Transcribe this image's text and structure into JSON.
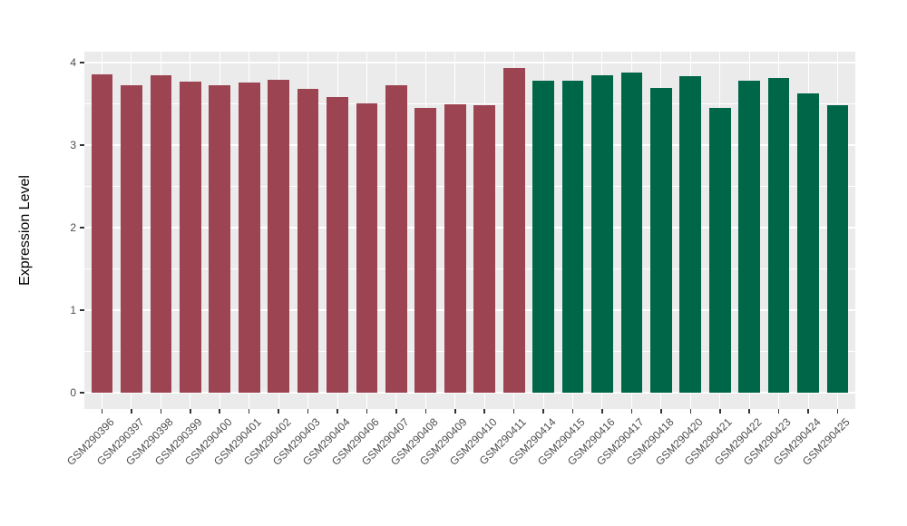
{
  "chart_data": {
    "type": "bar",
    "title": "",
    "xlabel": "",
    "ylabel": "Expression Level",
    "ylim": [
      0,
      4
    ],
    "yticks": [
      0,
      1,
      2,
      3,
      4
    ],
    "grid": true,
    "legend": false,
    "panel_background": "#EBEBEB",
    "gridline_color": "#FFFFFF",
    "tick_color": "#333333",
    "tick_label_color": "#4D4D4D",
    "categories": [
      "GSM290396",
      "GSM290397",
      "GSM290398",
      "GSM290399",
      "GSM290400",
      "GSM290401",
      "GSM290402",
      "GSM290403",
      "GSM290404",
      "GSM290406",
      "GSM290407",
      "GSM290408",
      "GSM290409",
      "GSM290410",
      "GSM290411",
      "GSM290414",
      "GSM290415",
      "GSM290416",
      "GSM290417",
      "GSM290418",
      "GSM290420",
      "GSM290421",
      "GSM290422",
      "GSM290423",
      "GSM290424",
      "GSM290425"
    ],
    "values": [
      3.86,
      3.72,
      3.85,
      3.77,
      3.73,
      3.76,
      3.79,
      3.68,
      3.58,
      3.51,
      3.72,
      3.45,
      3.5,
      3.48,
      3.93,
      3.78,
      3.78,
      3.85,
      3.88,
      3.69,
      3.83,
      3.45,
      3.78,
      3.81,
      3.63,
      3.48
    ],
    "groups": [
      "group1",
      "group1",
      "group1",
      "group1",
      "group1",
      "group1",
      "group1",
      "group1",
      "group1",
      "group1",
      "group1",
      "group1",
      "group1",
      "group1",
      "group1",
      "group2",
      "group2",
      "group2",
      "group2",
      "group2",
      "group2",
      "group2",
      "group2",
      "group2",
      "group2",
      "group2"
    ],
    "group_colors": {
      "group1": "#9D4452",
      "group2": "#006648"
    }
  }
}
